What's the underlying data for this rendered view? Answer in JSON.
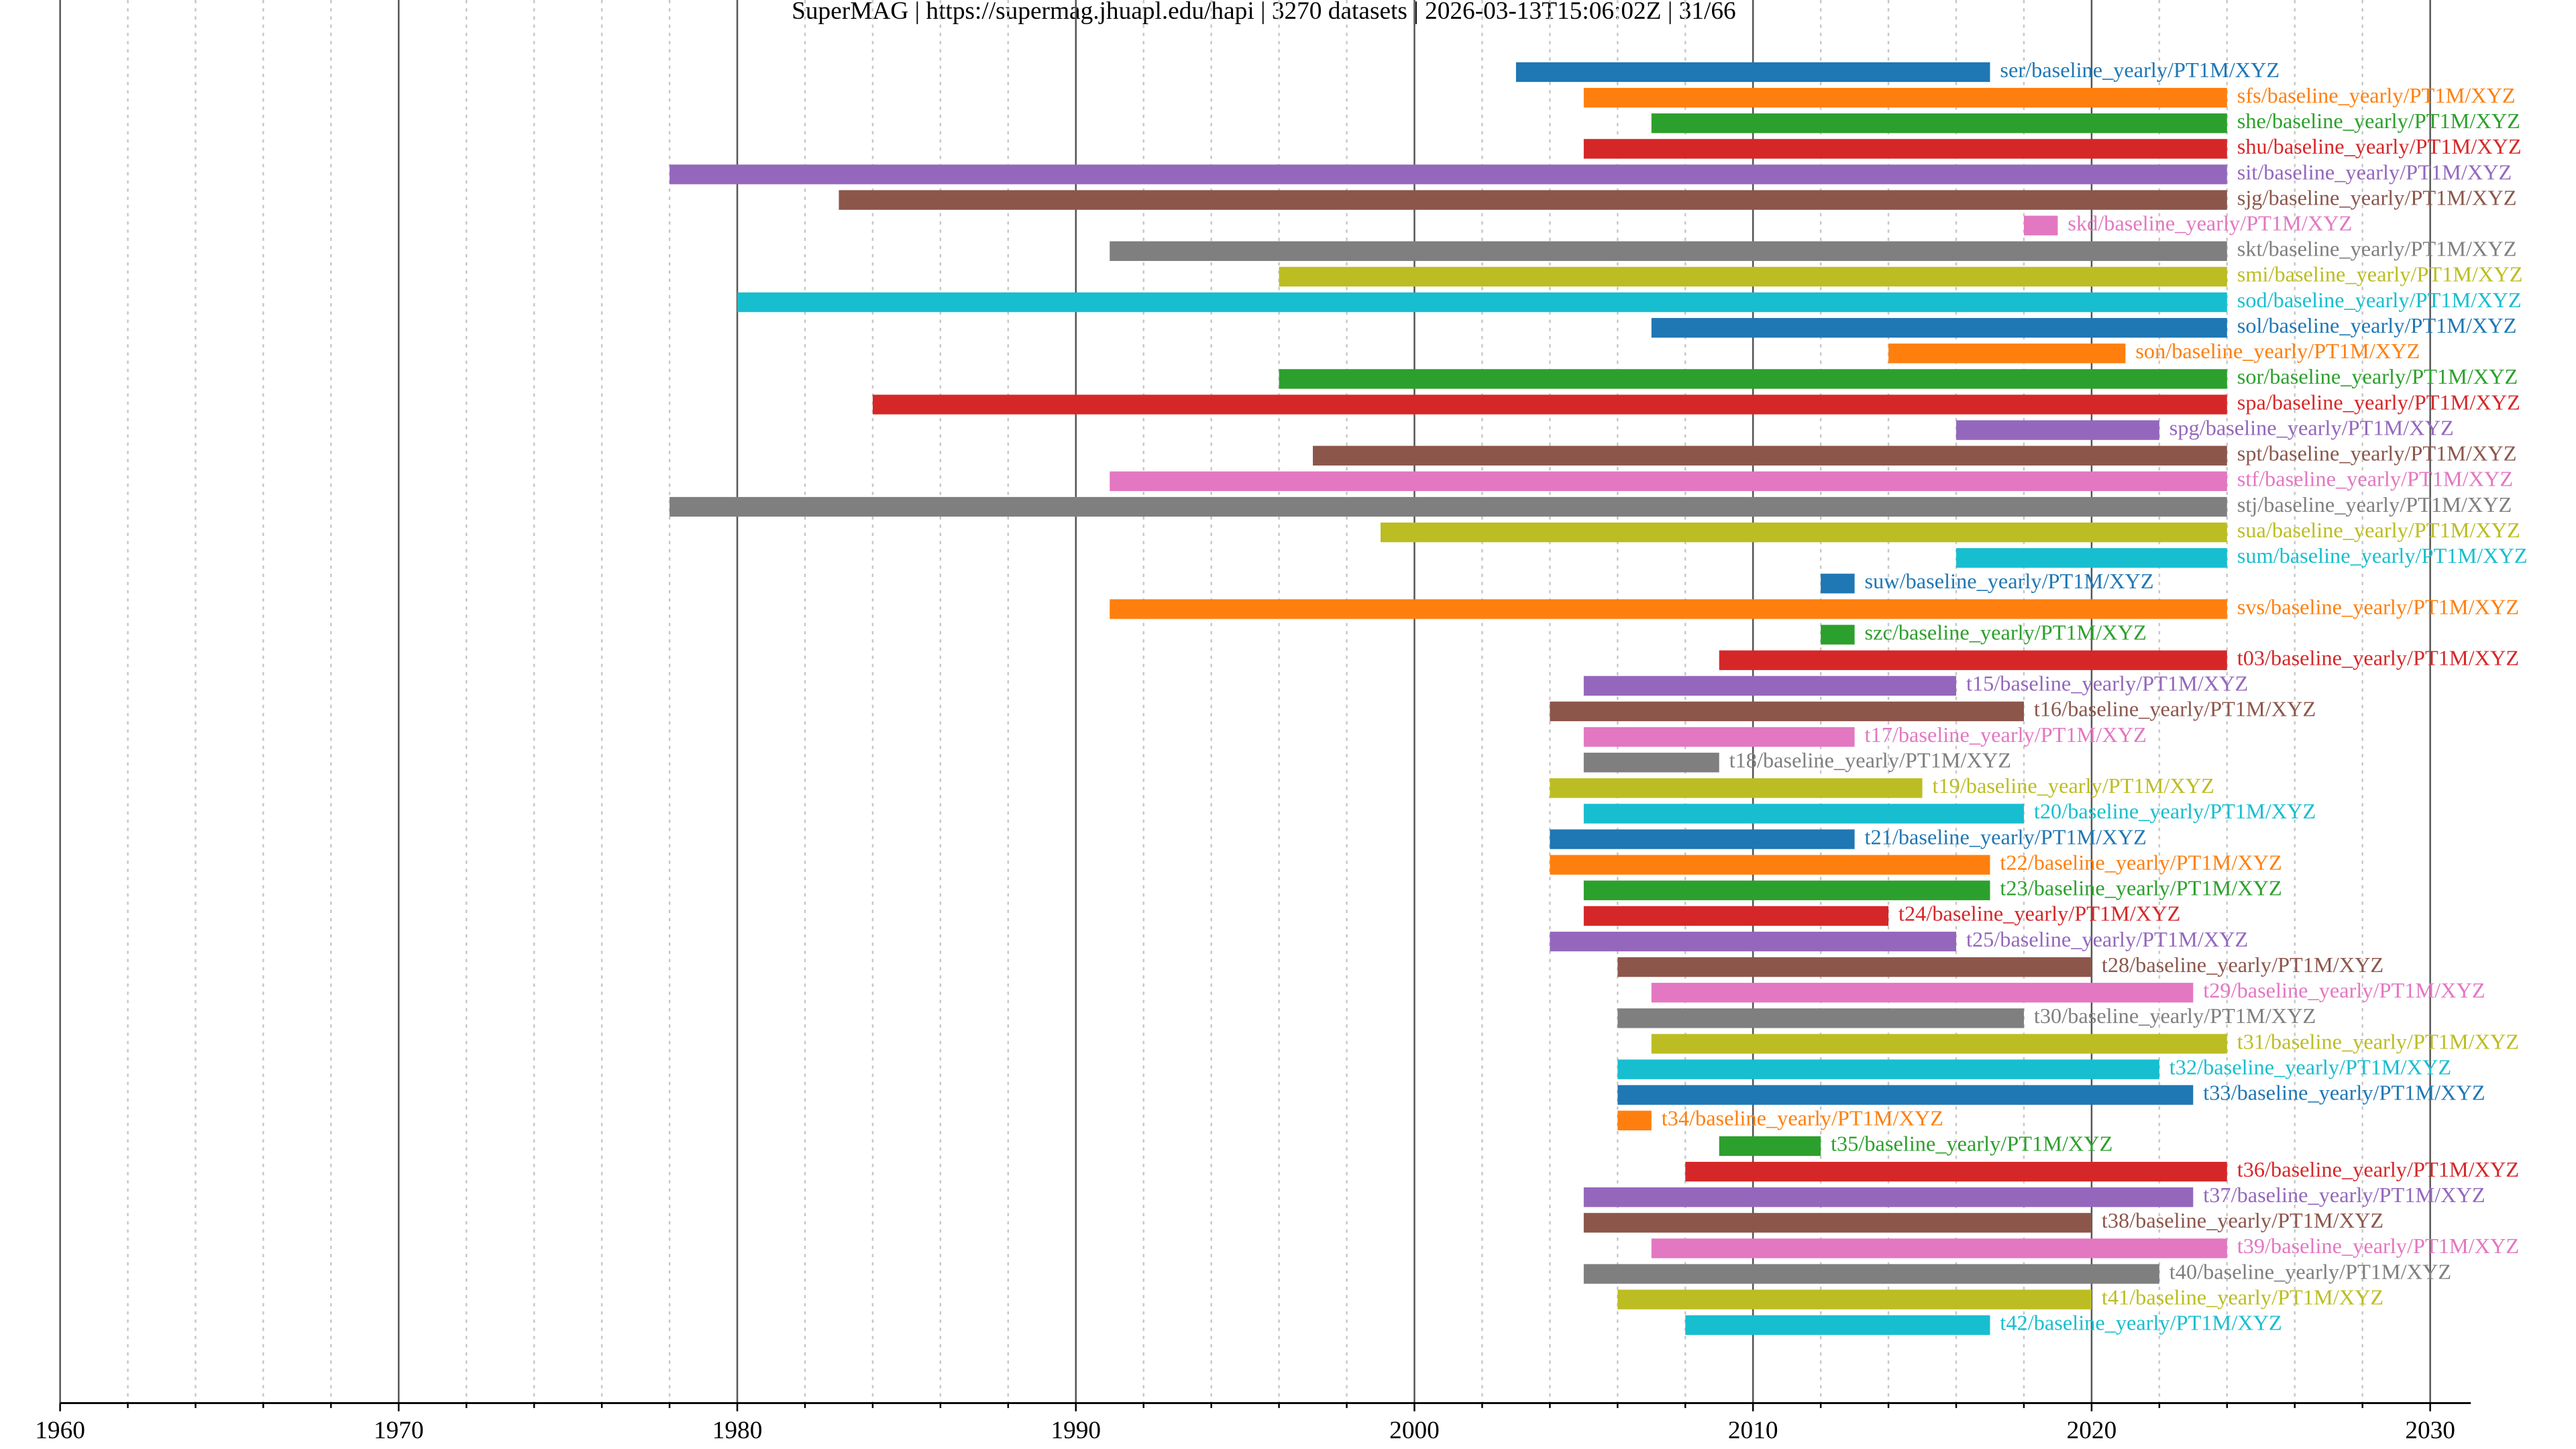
{
  "chart_data": {
    "type": "timeline",
    "title": "SuperMAG | https://supermag.jhuapl.edu/hapi | 3270 datasets | 2026-03-13T15:06:02Z | 31/66",
    "xlim": [
      1960,
      2031.2
    ],
    "xticks": [
      1960,
      1970,
      1980,
      1990,
      2000,
      2010,
      2020,
      2030
    ],
    "xminorticks": [
      1962,
      1964,
      1966,
      1968,
      1972,
      1974,
      1976,
      1978,
      1982,
      1984,
      1986,
      1988,
      1992,
      1994,
      1996,
      1998,
      2002,
      2004,
      2006,
      2008,
      2012,
      2014,
      2016,
      2018,
      2022,
      2024,
      2026,
      2028
    ],
    "grid": true,
    "bars": [
      {
        "label": "ser/baseline_yearly/PT1M/XYZ",
        "color": "#1f77b4",
        "start": 2003,
        "end": 2017
      },
      {
        "label": "sfs/baseline_yearly/PT1M/XYZ",
        "color": "#ff7f0e",
        "start": 2005,
        "end": 2024
      },
      {
        "label": "she/baseline_yearly/PT1M/XYZ",
        "color": "#2ca02c",
        "start": 2007,
        "end": 2024
      },
      {
        "label": "shu/baseline_yearly/PT1M/XYZ",
        "color": "#d62728",
        "start": 2005,
        "end": 2024
      },
      {
        "label": "sit/baseline_yearly/PT1M/XYZ",
        "color": "#9467bd",
        "start": 1978,
        "end": 2024
      },
      {
        "label": "sjg/baseline_yearly/PT1M/XYZ",
        "color": "#8c564b",
        "start": 1983,
        "end": 2024
      },
      {
        "label": "skd/baseline_yearly/PT1M/XYZ",
        "color": "#e377c2",
        "start": 2018,
        "end": 2019
      },
      {
        "label": "skt/baseline_yearly/PT1M/XYZ",
        "color": "#7f7f7f",
        "start": 1991,
        "end": 2024
      },
      {
        "label": "smi/baseline_yearly/PT1M/XYZ",
        "color": "#bcbd22",
        "start": 1996,
        "end": 2024
      },
      {
        "label": "sod/baseline_yearly/PT1M/XYZ",
        "color": "#17becf",
        "start": 1980,
        "end": 2024
      },
      {
        "label": "sol/baseline_yearly/PT1M/XYZ",
        "color": "#1f77b4",
        "start": 2007,
        "end": 2024
      },
      {
        "label": "son/baseline_yearly/PT1M/XYZ",
        "color": "#ff7f0e",
        "start": 2014,
        "end": 2021
      },
      {
        "label": "sor/baseline_yearly/PT1M/XYZ",
        "color": "#2ca02c",
        "start": 1996,
        "end": 2024
      },
      {
        "label": "spa/baseline_yearly/PT1M/XYZ",
        "color": "#d62728",
        "start": 1984,
        "end": 2024
      },
      {
        "label": "spg/baseline_yearly/PT1M/XYZ",
        "color": "#9467bd",
        "start": 2016,
        "end": 2022
      },
      {
        "label": "spt/baseline_yearly/PT1M/XYZ",
        "color": "#8c564b",
        "start": 1997,
        "end": 2024
      },
      {
        "label": "stf/baseline_yearly/PT1M/XYZ",
        "color": "#e377c2",
        "start": 1991,
        "end": 2024
      },
      {
        "label": "stj/baseline_yearly/PT1M/XYZ",
        "color": "#7f7f7f",
        "start": 1978,
        "end": 2024
      },
      {
        "label": "sua/baseline_yearly/PT1M/XYZ",
        "color": "#bcbd22",
        "start": 1999,
        "end": 2024
      },
      {
        "label": "sum/baseline_yearly/PT1M/XYZ",
        "color": "#17becf",
        "start": 2016,
        "end": 2024
      },
      {
        "label": "suw/baseline_yearly/PT1M/XYZ",
        "color": "#1f77b4",
        "start": 2012,
        "end": 2013
      },
      {
        "label": "svs/baseline_yearly/PT1M/XYZ",
        "color": "#ff7f0e",
        "start": 1991,
        "end": 2024
      },
      {
        "label": "szc/baseline_yearly/PT1M/XYZ",
        "color": "#2ca02c",
        "start": 2012,
        "end": 2013
      },
      {
        "label": "t03/baseline_yearly/PT1M/XYZ",
        "color": "#d62728",
        "start": 2009,
        "end": 2024
      },
      {
        "label": "t15/baseline_yearly/PT1M/XYZ",
        "color": "#9467bd",
        "start": 2005,
        "end": 2016
      },
      {
        "label": "t16/baseline_yearly/PT1M/XYZ",
        "color": "#8c564b",
        "start": 2004,
        "end": 2018
      },
      {
        "label": "t17/baseline_yearly/PT1M/XYZ",
        "color": "#e377c2",
        "start": 2005,
        "end": 2013
      },
      {
        "label": "t18/baseline_yearly/PT1M/XYZ",
        "color": "#7f7f7f",
        "start": 2005,
        "end": 2009
      },
      {
        "label": "t19/baseline_yearly/PT1M/XYZ",
        "color": "#bcbd22",
        "start": 2004,
        "end": 2015
      },
      {
        "label": "t20/baseline_yearly/PT1M/XYZ",
        "color": "#17becf",
        "start": 2005,
        "end": 2018
      },
      {
        "label": "t21/baseline_yearly/PT1M/XYZ",
        "color": "#1f77b4",
        "start": 2004,
        "end": 2013
      },
      {
        "label": "t22/baseline_yearly/PT1M/XYZ",
        "color": "#ff7f0e",
        "start": 2004,
        "end": 2017
      },
      {
        "label": "t23/baseline_yearly/PT1M/XYZ",
        "color": "#2ca02c",
        "start": 2005,
        "end": 2017
      },
      {
        "label": "t24/baseline_yearly/PT1M/XYZ",
        "color": "#d62728",
        "start": 2005,
        "end": 2014
      },
      {
        "label": "t25/baseline_yearly/PT1M/XYZ",
        "color": "#9467bd",
        "start": 2004,
        "end": 2016
      },
      {
        "label": "t28/baseline_yearly/PT1M/XYZ",
        "color": "#8c564b",
        "start": 2006,
        "end": 2020
      },
      {
        "label": "t29/baseline_yearly/PT1M/XYZ",
        "color": "#e377c2",
        "start": 2007,
        "end": 2023
      },
      {
        "label": "t30/baseline_yearly/PT1M/XYZ",
        "color": "#7f7f7f",
        "start": 2006,
        "end": 2018
      },
      {
        "label": "t31/baseline_yearly/PT1M/XYZ",
        "color": "#bcbd22",
        "start": 2007,
        "end": 2024
      },
      {
        "label": "t32/baseline_yearly/PT1M/XYZ",
        "color": "#17becf",
        "start": 2006,
        "end": 2022
      },
      {
        "label": "t33/baseline_yearly/PT1M/XYZ",
        "color": "#1f77b4",
        "start": 2006,
        "end": 2023
      },
      {
        "label": "t34/baseline_yearly/PT1M/XYZ",
        "color": "#ff7f0e",
        "start": 2006,
        "end": 2007
      },
      {
        "label": "t35/baseline_yearly/PT1M/XYZ",
        "color": "#2ca02c",
        "start": 2009,
        "end": 2012
      },
      {
        "label": "t36/baseline_yearly/PT1M/XYZ",
        "color": "#d62728",
        "start": 2008,
        "end": 2024
      },
      {
        "label": "t37/baseline_yearly/PT1M/XYZ",
        "color": "#9467bd",
        "start": 2005,
        "end": 2023
      },
      {
        "label": "t38/baseline_yearly/PT1M/XYZ",
        "color": "#8c564b",
        "start": 2005,
        "end": 2020
      },
      {
        "label": "t39/baseline_yearly/PT1M/XYZ",
        "color": "#e377c2",
        "start": 2007,
        "end": 2024
      },
      {
        "label": "t40/baseline_yearly/PT1M/XYZ",
        "color": "#7f7f7f",
        "start": 2005,
        "end": 2022
      },
      {
        "label": "t41/baseline_yearly/PT1M/XYZ",
        "color": "#bcbd22",
        "start": 2006,
        "end": 2020
      },
      {
        "label": "t42/baseline_yearly/PT1M/XYZ",
        "color": "#17becf",
        "start": 2008,
        "end": 2017
      }
    ]
  }
}
